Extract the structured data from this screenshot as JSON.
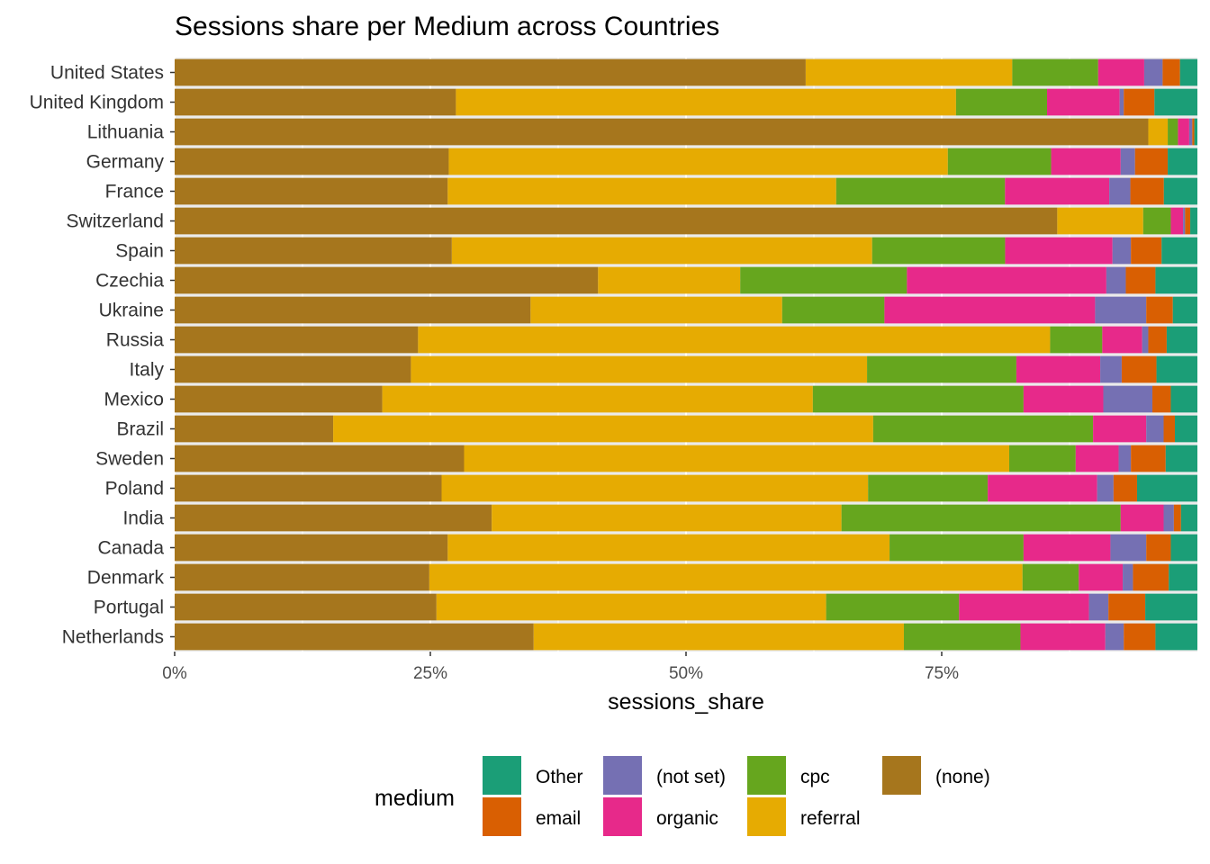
{
  "chart_data": {
    "type": "bar",
    "orientation": "horizontal",
    "stacked": true,
    "title": "Sessions share per Medium across Countries",
    "xlabel": "sessions_share",
    "ylabel": "",
    "xlim": [
      0,
      1
    ],
    "x_ticks": [
      {
        "value": 0,
        "label": "0%"
      },
      {
        "value": 0.25,
        "label": "25%"
      },
      {
        "value": 0.5,
        "label": "50%"
      },
      {
        "value": 0.75,
        "label": "75%"
      }
    ],
    "grid": true,
    "legend": {
      "title": "medium",
      "position": "bottom",
      "entries": [
        {
          "name": "Other",
          "color": "#1B9E77"
        },
        {
          "name": "email",
          "color": "#D95F02"
        },
        {
          "name": "(not set)",
          "color": "#7570B3"
        },
        {
          "name": "organic",
          "color": "#E7298A"
        },
        {
          "name": "cpc",
          "color": "#66A61E"
        },
        {
          "name": "referral",
          "color": "#E6AB02"
        },
        {
          "name": "(none)",
          "color": "#A6761D"
        }
      ]
    },
    "stack_order": [
      "(none)",
      "referral",
      "cpc",
      "organic",
      "(not set)",
      "email",
      "Other"
    ],
    "categories": [
      "United States",
      "United Kingdom",
      "Lithuania",
      "Germany",
      "France",
      "Switzerland",
      "Spain",
      "Czechia",
      "Ukraine",
      "Russia",
      "Italy",
      "Mexico",
      "Brazil",
      "Sweden",
      "Poland",
      "India",
      "Canada",
      "Denmark",
      "Portugal",
      "Netherlands"
    ],
    "series": [
      {
        "name": "(none)",
        "color": "#A6761D",
        "values": [
          0.617,
          0.275,
          0.952,
          0.268,
          0.22,
          0.863,
          0.271,
          0.414,
          0.348,
          0.238,
          0.231,
          0.203,
          0.155,
          0.283,
          0.261,
          0.31,
          0.267,
          0.249,
          0.256,
          0.351
        ]
      },
      {
        "name": "referral",
        "color": "#E6AB02",
        "values": [
          0.202,
          0.489,
          0.019,
          0.488,
          0.313,
          0.084,
          0.411,
          0.139,
          0.246,
          0.618,
          0.446,
          0.421,
          0.528,
          0.533,
          0.417,
          0.342,
          0.432,
          0.58,
          0.381,
          0.362
        ]
      },
      {
        "name": "cpc",
        "color": "#66A61E",
        "values": [
          0.084,
          0.089,
          0.01,
          0.101,
          0.136,
          0.027,
          0.13,
          0.163,
          0.1,
          0.051,
          0.146,
          0.206,
          0.215,
          0.065,
          0.117,
          0.273,
          0.131,
          0.055,
          0.13,
          0.114
        ]
      },
      {
        "name": "organic",
        "color": "#E7298A",
        "values": [
          0.045,
          0.071,
          0.011,
          0.068,
          0.084,
          0.012,
          0.105,
          0.195,
          0.206,
          0.039,
          0.082,
          0.078,
          0.052,
          0.042,
          0.107,
          0.042,
          0.085,
          0.043,
          0.127,
          0.083
        ]
      },
      {
        "name": "(not set)",
        "color": "#7570B3",
        "values": [
          0.018,
          0.004,
          0.003,
          0.014,
          0.017,
          0.002,
          0.018,
          0.019,
          0.05,
          0.006,
          0.021,
          0.048,
          0.017,
          0.012,
          0.016,
          0.01,
          0.035,
          0.01,
          0.019,
          0.018
        ]
      },
      {
        "name": "email",
        "color": "#D95F02",
        "values": [
          0.017,
          0.03,
          0.002,
          0.032,
          0.027,
          0.005,
          0.03,
          0.029,
          0.026,
          0.018,
          0.034,
          0.018,
          0.011,
          0.034,
          0.023,
          0.007,
          0.024,
          0.035,
          0.036,
          0.031
        ]
      },
      {
        "name": "Other",
        "color": "#1B9E77",
        "values": [
          0.017,
          0.042,
          0.003,
          0.029,
          0.027,
          0.007,
          0.035,
          0.041,
          0.024,
          0.03,
          0.04,
          0.026,
          0.022,
          0.031,
          0.059,
          0.016,
          0.026,
          0.028,
          0.051,
          0.041
        ]
      }
    ]
  }
}
